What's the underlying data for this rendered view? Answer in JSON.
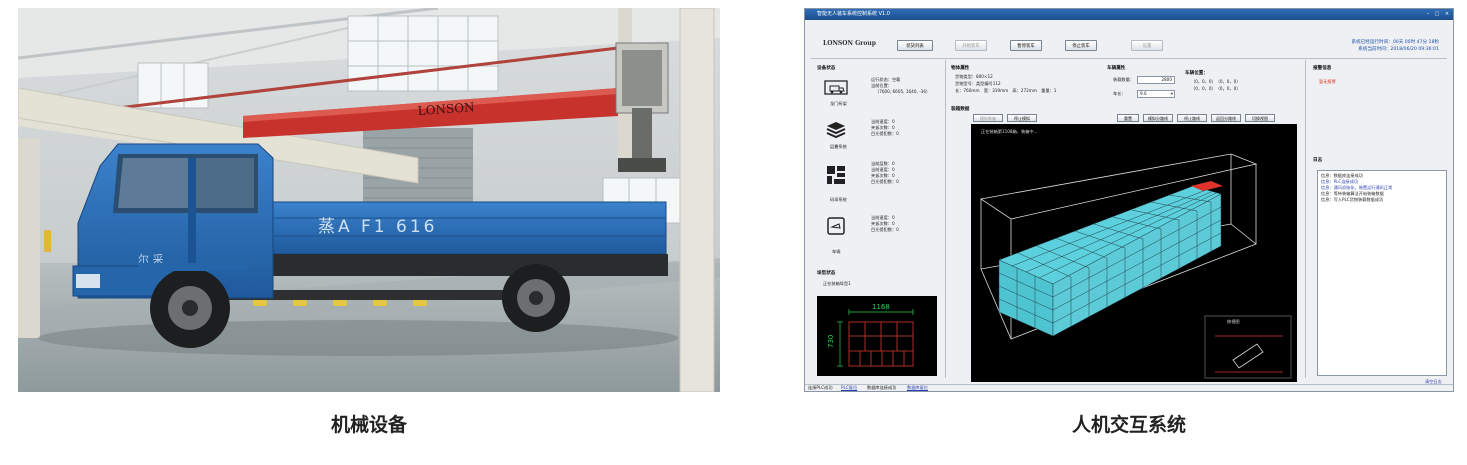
{
  "captions": {
    "left": "机械设备",
    "right": "人机交互系统"
  },
  "photo": {
    "crane_brand": "LONSON",
    "truck_lettering": "蒸A F1 616",
    "truck_door_text": "尔 采",
    "colors": {
      "truck": "#2e6fb8",
      "crane": "#c8322c",
      "floor": "#9aa4a6"
    }
  },
  "screen": {
    "window_title": "智能无人装车系统控制系统 V1.0",
    "logo": "LONSON Group",
    "toolbar": {
      "b1": "装货列表",
      "b2": "开始装车",
      "b3": "暂停装车",
      "b4": "停止装车",
      "b5": "设置"
    },
    "system_time": {
      "run": "系统已经运行时间：00天 00时 47分 18秒",
      "now": "系统当前时间：2018/06/20 09:36:01"
    },
    "device_status_title": "设备状态",
    "crane_label": "龙门桁架",
    "crane_status": [
      "运行状态：空载",
      "当前位置：",
      "（7600, 6605, 1640, -36）"
    ],
    "layer_label": "层叠系统",
    "layer_status": [
      "当前速度：0",
      "夹紧次数：0",
      "目光侵犯数：0"
    ],
    "grid_label": "码垛系统",
    "grid_status": [
      "当前层数：0",
      "当前速度：0",
      "夹紧次数：0",
      "目光侵犯数：0"
    ],
    "vehicle_label": "车辆",
    "vehicle_status": [
      "当前速度：0",
      "夹紧次数：0",
      "目光侵犯数：0"
    ],
    "pack_status_title": "垛型状态",
    "pack_status_text": "正在装箱垛型1",
    "pack_width": "1168",
    "pack_depth": "730",
    "box_attr": {
      "title": "物体属性",
      "type": "货物类型：800×12",
      "model": "货物型号：类型编号112",
      "dims": "长：760mm　宽：319mm　高：272mm　重量：1"
    },
    "vehicle_attr": {
      "title": "车辆属性",
      "count_label": "装载数量：",
      "count_value": "2800",
      "length_label": "车长：",
      "length_value": "9.6"
    },
    "vehicle_pos": {
      "title": "车辆位置：",
      "l1": "（0，0，0）　（0，0，0）",
      "l2": "（0，0，0）　（0，0，0）"
    },
    "sim_title": "装箱数据",
    "sim_buttons": {
      "s1": "模拟装箱",
      "s2": "停止模拟",
      "s3": "重置",
      "s4": "模拟分路线",
      "s5": "停止路线",
      "s6": "返回分路线",
      "s7": "切换视图"
    },
    "sim_status": "正在装箱第1108箱，装箱中...",
    "mini_label": "俯视图",
    "alarm_title": "报警信息",
    "alarm_text": "暂无报警",
    "log_title": "日志",
    "log_lines": [
      "信息：数据库连接成功",
      "信息：PLC连接成功",
      "信息：通讯初始化，装置运行通讯正常",
      "信息：等待装箱算法开始装箱数据",
      "信息：写入PLC货物装载数据成功"
    ],
    "log_clear": "清空日志",
    "status_bar": [
      "连接PLC成功",
      "PLC复位",
      "数据库连接成功",
      "数据库复位"
    ]
  }
}
